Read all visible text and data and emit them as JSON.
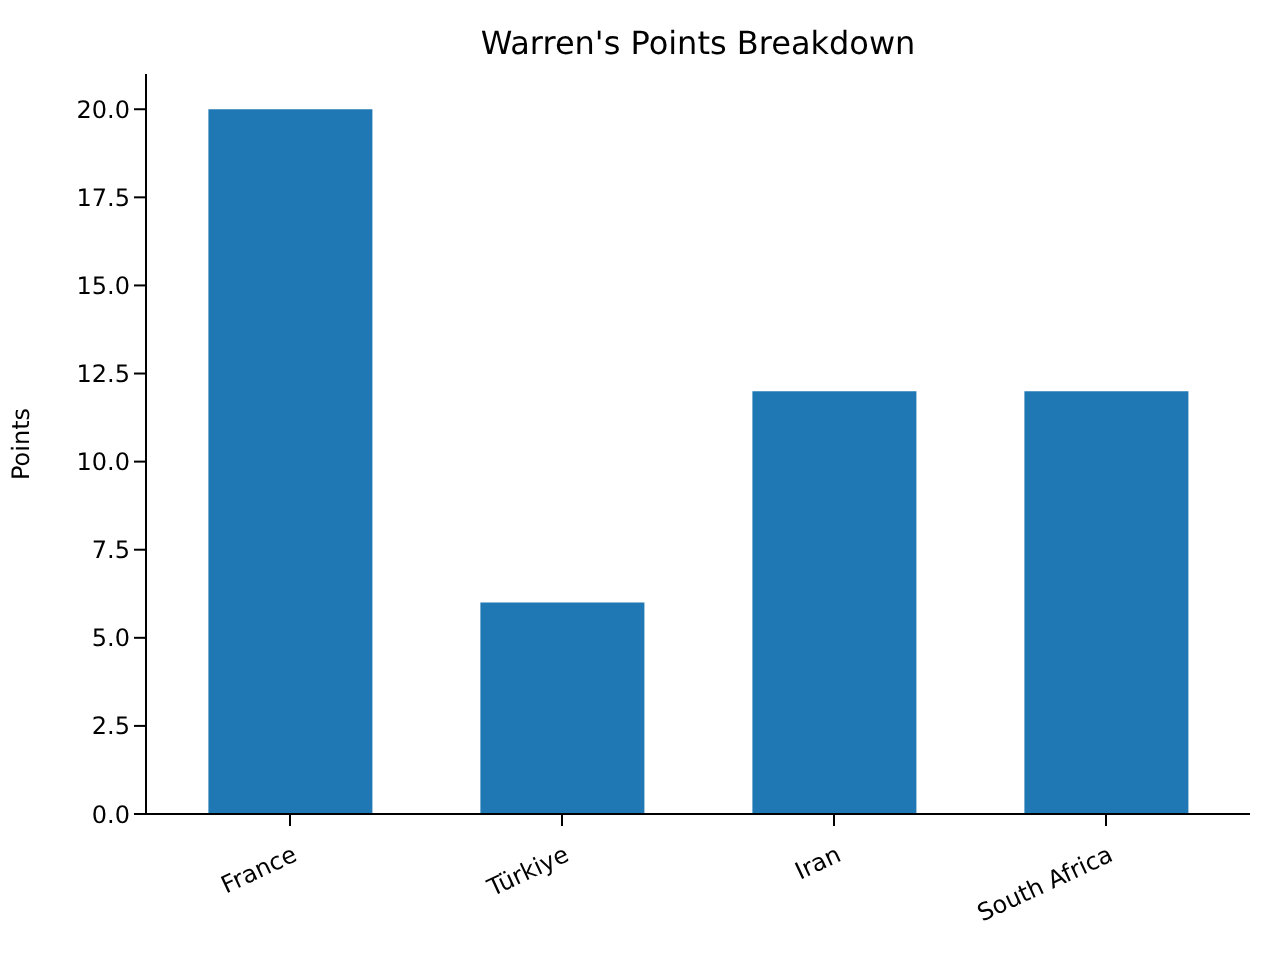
{
  "chart_data": {
    "type": "bar",
    "title": "Warren's Points Breakdown",
    "ylabel": "Points",
    "categories": [
      "France",
      "Türkiye",
      "Iran",
      "South Africa"
    ],
    "values": [
      20,
      6,
      12,
      12
    ],
    "color": "#1f77b4",
    "ylim": [
      0,
      21
    ],
    "yticks": [
      {
        "value": 0,
        "label": "0.0"
      },
      {
        "value": 2.5,
        "label": "2.5"
      },
      {
        "value": 5,
        "label": "5.0"
      },
      {
        "value": 7.5,
        "label": "7.5"
      },
      {
        "value": 10,
        "label": "10.0"
      },
      {
        "value": 12.5,
        "label": "12.5"
      },
      {
        "value": 15,
        "label": "15.0"
      },
      {
        "value": 17.5,
        "label": "17.5"
      },
      {
        "value": 20,
        "label": "20.0"
      }
    ],
    "grid": false
  }
}
